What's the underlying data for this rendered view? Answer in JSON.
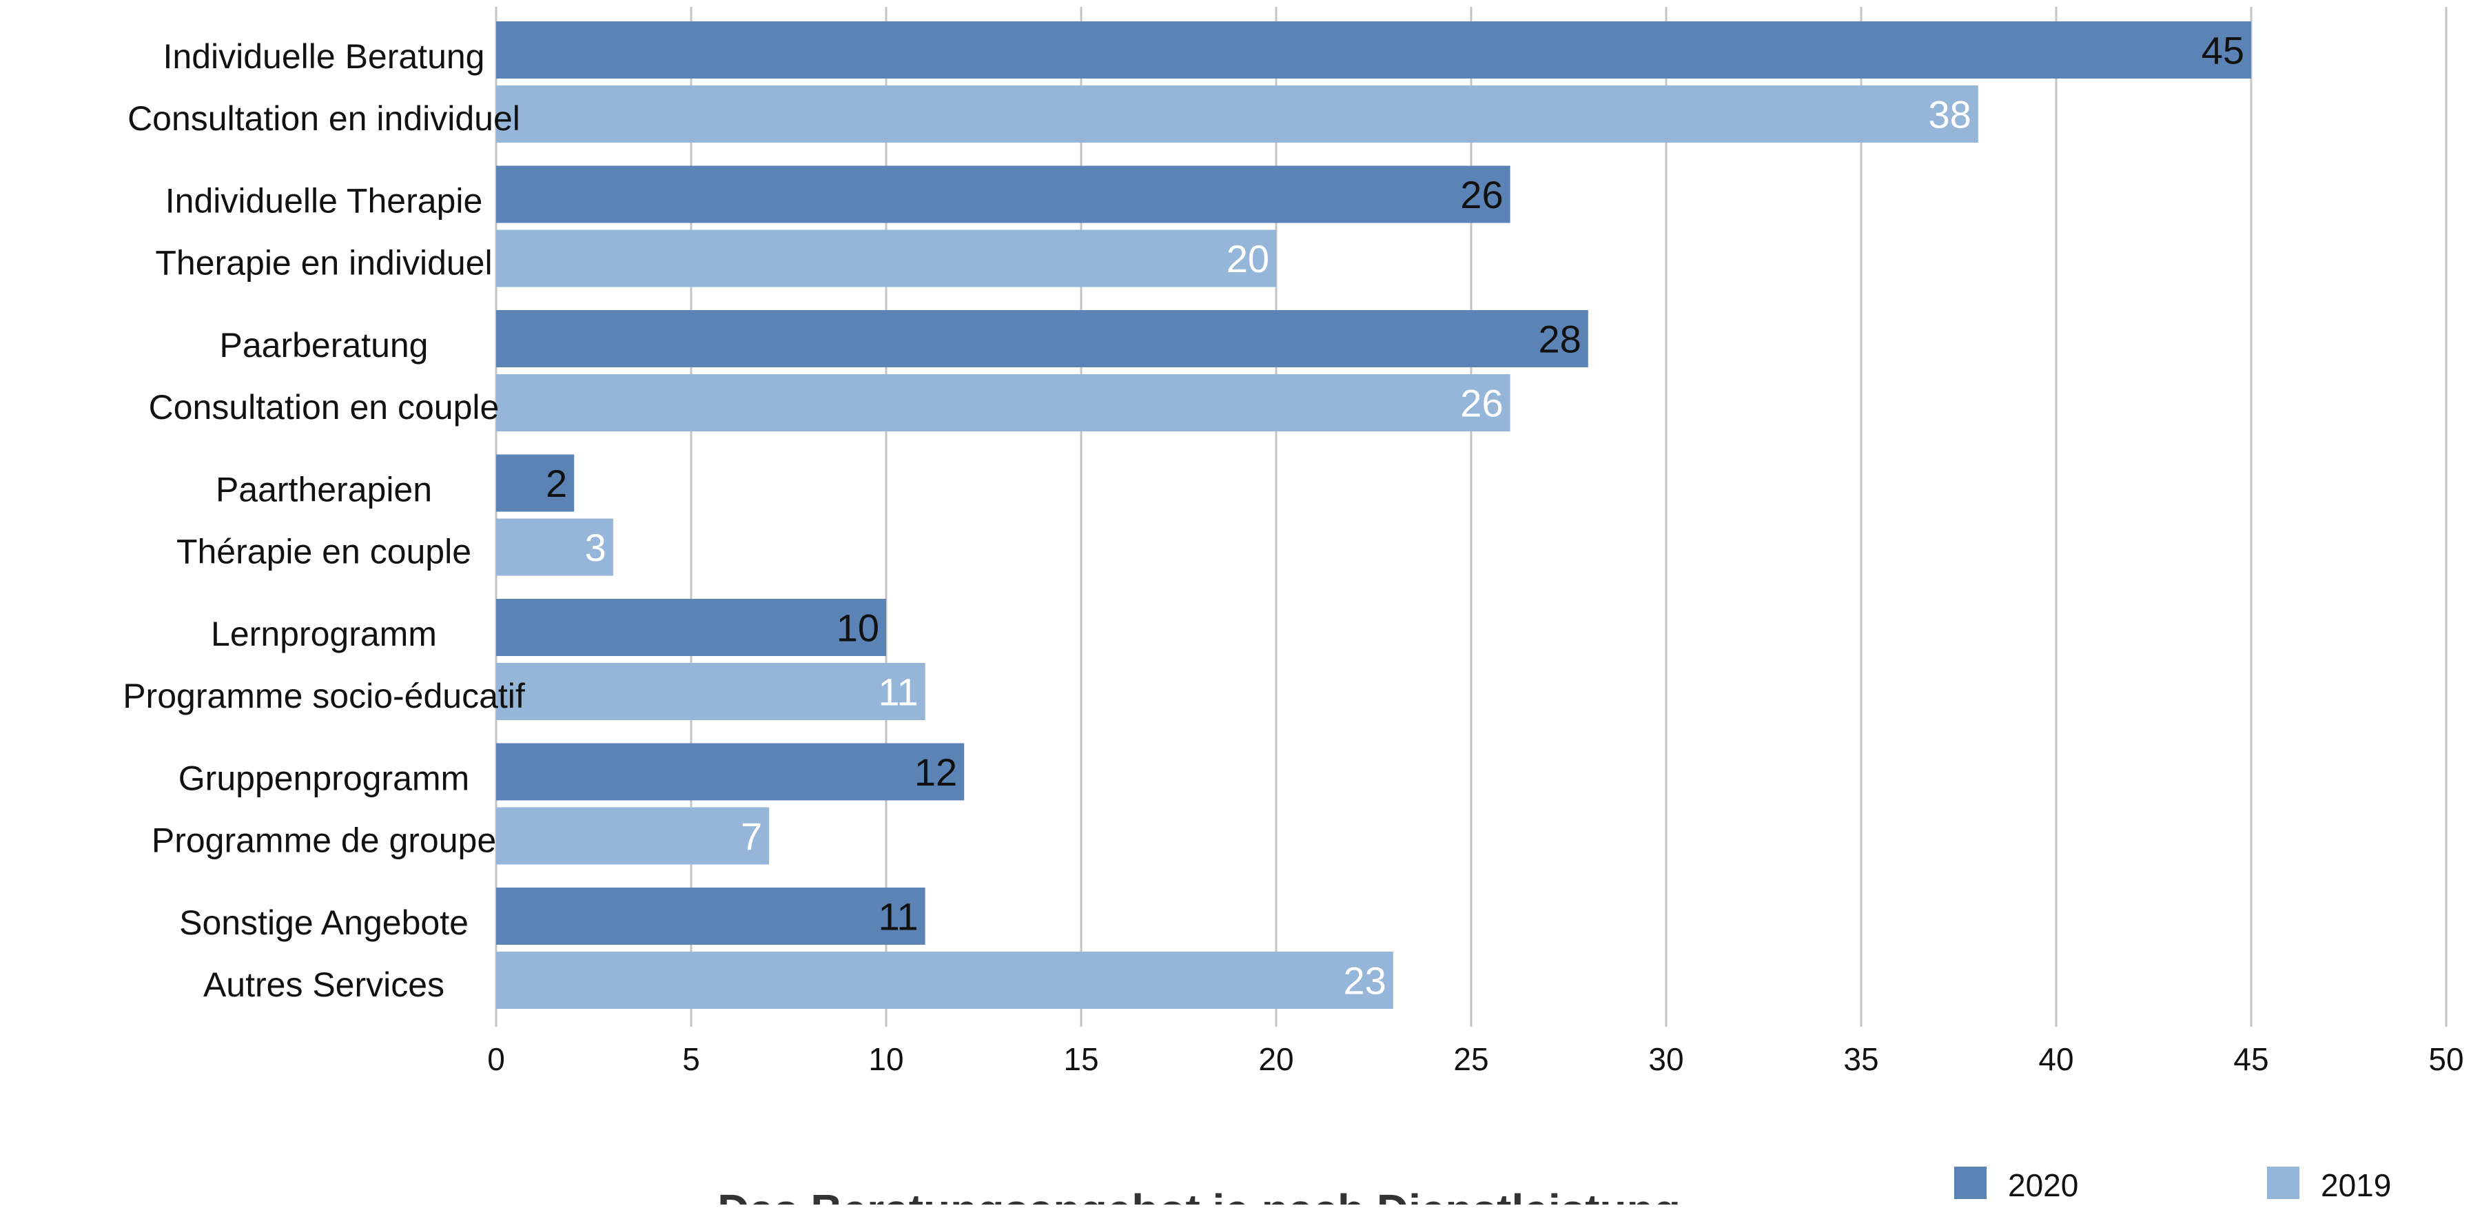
{
  "chart_data": {
    "type": "bar",
    "orientation": "horizontal",
    "title": "Das Beratungsangebot je nach Dienstleistung",
    "categories": [
      [
        "Individuelle Beratung",
        "Consultation en individuel"
      ],
      [
        "Individuelle Therapie",
        "Therapie en individuel"
      ],
      [
        "Paarberatung",
        "Consultation en couple"
      ],
      [
        "Paartherapien",
        "Thérapie en couple"
      ],
      [
        "Lernprogramm",
        "Programme socio-éducatif"
      ],
      [
        "Gruppenprogramm",
        "Programme de groupe"
      ],
      [
        "Sonstige Angebote",
        "Autres Services"
      ]
    ],
    "series": [
      {
        "name": "2020",
        "color": "#5b83b5",
        "label_color": "#111111",
        "values": [
          45,
          26,
          28,
          2,
          10,
          12,
          11
        ]
      },
      {
        "name": "2019",
        "color": "#95b6d9",
        "label_color": "#ffffff",
        "values": [
          38,
          20,
          26,
          3,
          11,
          7,
          23
        ]
      }
    ],
    "xlim": [
      0,
      50
    ],
    "x_ticks": [
      0,
      5,
      10,
      15,
      20,
      25,
      30,
      35,
      40,
      45,
      50
    ],
    "grid": true,
    "gridline_color": "#c4c4c4",
    "legend_position": "bottom-right",
    "data_labels": true
  }
}
